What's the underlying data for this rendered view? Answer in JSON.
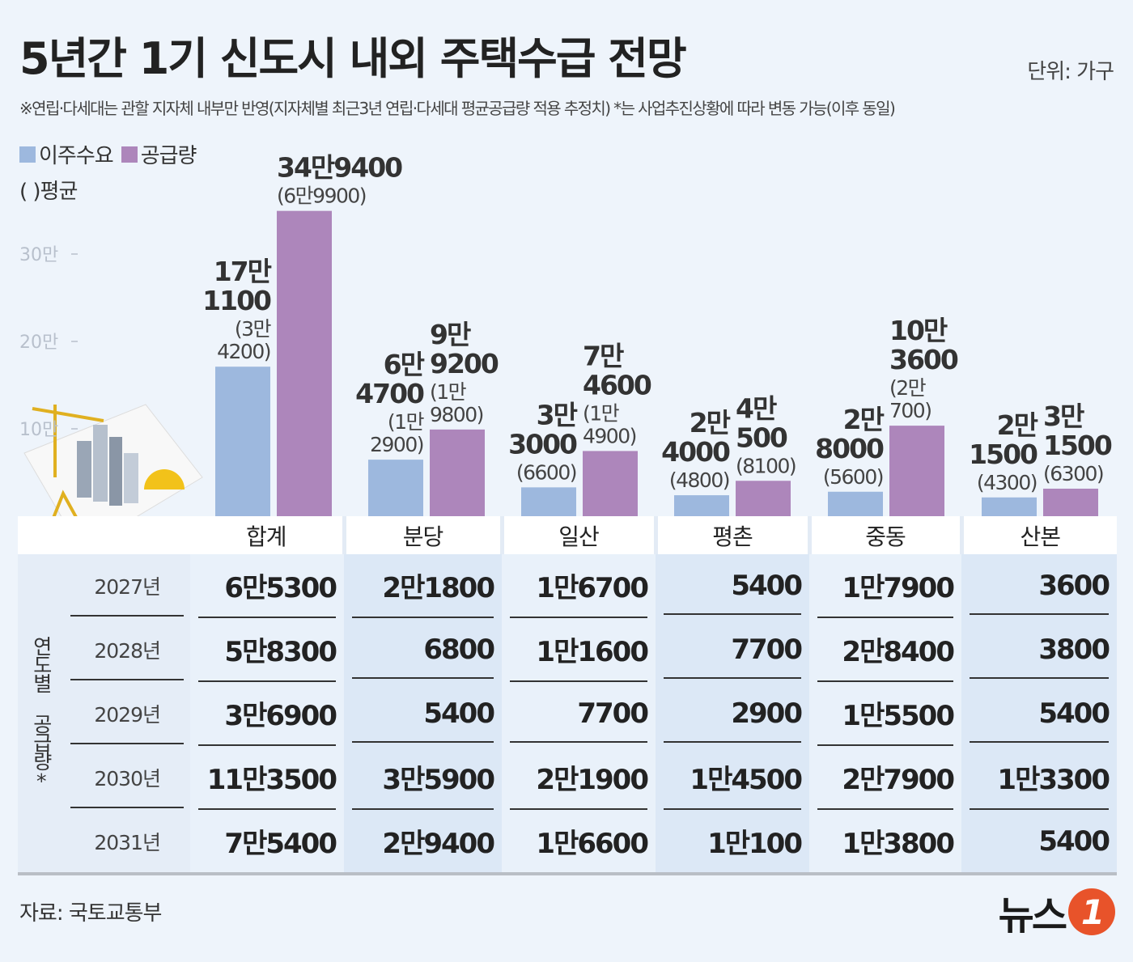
{
  "title": "5년간 1기 신도시 내외 주택수급 전망",
  "unit": "단위: 가구",
  "note": "※연립·다세대는 관할 지자체 내부만 반영(지자체별 최근3년 연립·다세대 평균공급량 적용 추정치) *는 사업추진상황에 따라 변동 가능(이후 동일)",
  "legend": {
    "demand": "이주수요",
    "supply": "공급량",
    "avg_note": "( )평균"
  },
  "colors": {
    "demand": "#9db8de",
    "supply": "#ad86bb",
    "background": "#eef4fb"
  },
  "chart_data": {
    "type": "bar",
    "categories": [
      "합계",
      "분당",
      "일산",
      "평촌",
      "중동",
      "산본"
    ],
    "ylim": [
      0,
      350000
    ],
    "yticks": [
      100000,
      200000,
      300000
    ],
    "ytick_labels": [
      "10만",
      "20만",
      "30만"
    ],
    "series": [
      {
        "name": "이주수요",
        "values": [
          171100,
          64700,
          33000,
          24000,
          28000,
          21500
        ],
        "labels": [
          "17만1100",
          "6만4700",
          "3만3000",
          "2만4000",
          "2만8000",
          "2만1500"
        ],
        "avg_labels": [
          "(3만4200)",
          "(1만2900)",
          "(6600)",
          "(4800)",
          "(5600)",
          "(4300)"
        ]
      },
      {
        "name": "공급량",
        "values": [
          349400,
          99200,
          74600,
          40500,
          103600,
          31500
        ],
        "labels": [
          "34만9400",
          "9만9200",
          "7만4600",
          "4만500",
          "10만3600",
          "3만1500"
        ],
        "avg_labels": [
          "(6만9900)",
          "(1만9800)",
          "(1만4900)",
          "(8100)",
          "(2만700)",
          "(6300)"
        ]
      }
    ]
  },
  "table": {
    "side_label": "연도별 공급량*",
    "columns": [
      "합계",
      "분당",
      "일산",
      "평촌",
      "중동",
      "산본"
    ],
    "rows": [
      {
        "year": "2027년",
        "values": [
          "6만5300",
          "2만1800",
          "1만6700",
          "5400",
          "1만7900",
          "3600"
        ]
      },
      {
        "year": "2028년",
        "values": [
          "5만8300",
          "6800",
          "1만1600",
          "7700",
          "2만8400",
          "3800"
        ]
      },
      {
        "year": "2029년",
        "values": [
          "3만6900",
          "5400",
          "7700",
          "2900",
          "1만5500",
          "5400"
        ]
      },
      {
        "year": "2030년",
        "values": [
          "11만3500",
          "3만5900",
          "2만1900",
          "1만4500",
          "2만7900",
          "1만3300"
        ]
      },
      {
        "year": "2031년",
        "values": [
          "7만5400",
          "2만9400",
          "1만6600",
          "1만100",
          "1만3800",
          "5400"
        ]
      }
    ]
  },
  "source": "자료: 국토교통부",
  "watermark": "뉴스1"
}
